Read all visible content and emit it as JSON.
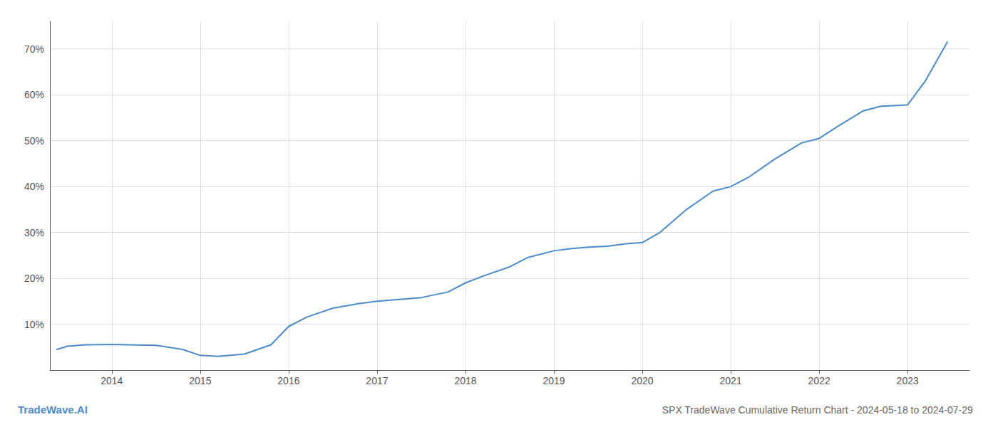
{
  "chart_data": {
    "type": "line",
    "title": "SPX TradeWave Cumulative Return Chart - 2024-05-18 to 2024-07-29",
    "annotations": [
      "TradeWave.AI"
    ],
    "color": "#4d8ac9",
    "grid": true,
    "x": [
      2013.38,
      2013.5,
      2013.7,
      2014.0,
      2014.2,
      2014.5,
      2014.8,
      2015.0,
      2015.2,
      2015.5,
      2015.8,
      2016.0,
      2016.2,
      2016.5,
      2016.8,
      2017.0,
      2017.2,
      2017.5,
      2017.8,
      2018.0,
      2018.2,
      2018.5,
      2018.7,
      2019.0,
      2019.2,
      2019.4,
      2019.6,
      2019.8,
      2020.0,
      2020.2,
      2020.5,
      2020.8,
      2021.0,
      2021.2,
      2021.5,
      2021.8,
      2022.0,
      2022.2,
      2022.5,
      2022.7,
      2023.0,
      2023.2,
      2023.45
    ],
    "values": [
      4.5,
      5.2,
      5.5,
      5.6,
      5.5,
      5.4,
      4.5,
      3.2,
      3.0,
      3.5,
      5.5,
      9.5,
      11.5,
      13.5,
      14.5,
      15.0,
      15.3,
      15.8,
      17.0,
      19.0,
      20.5,
      22.5,
      24.5,
      26.0,
      26.5,
      26.8,
      27.0,
      27.5,
      27.8,
      30.0,
      35.0,
      39.0,
      40.0,
      42.0,
      46.0,
      49.5,
      50.5,
      53.0,
      56.5,
      57.5,
      57.8,
      63.0,
      71.5
    ],
    "xlim": [
      2013.3,
      2023.7
    ],
    "xticks": [
      2014,
      2015,
      2016,
      2017,
      2018,
      2019,
      2020,
      2021,
      2022,
      2023
    ],
    "ylim": [
      0,
      76
    ],
    "yticks": [
      {
        "value": 10,
        "label": "10%"
      },
      {
        "value": 20,
        "label": "20%"
      },
      {
        "value": 30,
        "label": "30%"
      },
      {
        "value": 40,
        "label": "40%"
      },
      {
        "value": 50,
        "label": "50%"
      },
      {
        "value": 60,
        "label": "60%"
      },
      {
        "value": 70,
        "label": "70%"
      }
    ]
  }
}
